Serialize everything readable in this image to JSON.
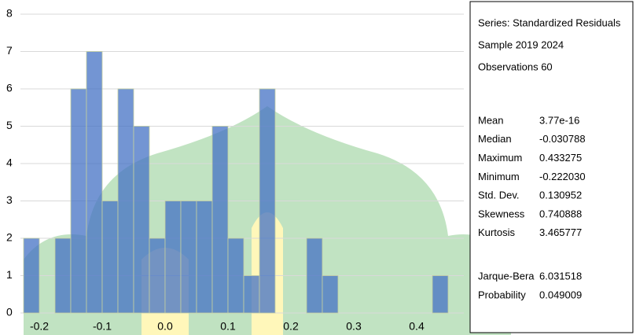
{
  "chart_data": {
    "type": "histogram",
    "bins": [
      -0.225,
      -0.2,
      -0.175,
      -0.15,
      -0.125,
      -0.1,
      -0.075,
      -0.05,
      -0.025,
      0,
      0.025,
      0.05,
      0.075,
      0.1,
      0.125,
      0.15,
      0.175,
      0.2,
      0.225,
      0.25,
      0.275,
      0.3,
      0.325,
      0.35,
      0.375,
      0.4,
      0.425,
      0.45
    ],
    "values": [
      2,
      0,
      2,
      6,
      7,
      3,
      6,
      5,
      2,
      3,
      3,
      3,
      5,
      2,
      1,
      6,
      0,
      0,
      2,
      1,
      0,
      0,
      0,
      0,
      0,
      0,
      1
    ],
    "color": "#4472c4",
    "xlim": [
      -0.23,
      0.475
    ],
    "xticks": [
      -0.2,
      -0.1,
      {
        "value": 0,
        "label": "0.0"
      },
      0.1,
      0.2,
      0.3,
      0.4
    ],
    "ylim": [
      0,
      8
    ],
    "yticks": [
      0,
      1,
      2,
      3,
      4,
      5,
      6,
      7,
      8
    ],
    "grid": true,
    "stats": {
      "header": [
        "Series: Standardized Residuals",
        "Sample 2019 2024",
        "Observations 60"
      ],
      "rows": [
        {
          "label": "Mean",
          "value": "3.77e-16"
        },
        {
          "label": "Median",
          "value": "-0.030788"
        },
        {
          "label": "Maximum",
          "value": "0.433275"
        },
        {
          "label": "Minimum",
          "value": "-0.222030"
        },
        {
          "label": "Std. Dev.",
          "value": "0.130952"
        },
        {
          "label": "Skewness",
          "value": "0.740888"
        },
        {
          "label": "Kurtosis",
          "value": "3.465777"
        }
      ],
      "tests": [
        {
          "label": "Jarque-Bera",
          "value": "6.031518"
        },
        {
          "label": "Probability",
          "value": "0.049009"
        }
      ]
    }
  }
}
